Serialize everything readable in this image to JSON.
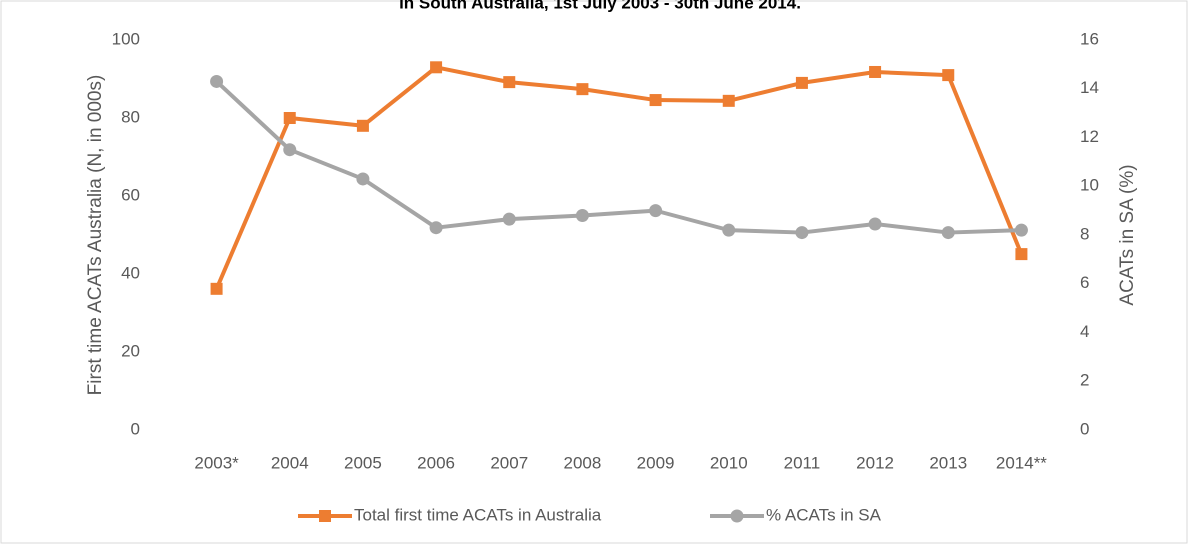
{
  "chart_data": {
    "type": "line",
    "title": "in South Australia, 1st July 2003 - 30th June 2014.",
    "ylabel": "First time ACATs Australia (N, in 000s)",
    "y2label": "ACATs in SA (%)",
    "categories": [
      "2003*",
      "2004",
      "2005",
      "2006",
      "2007",
      "2008",
      "2009",
      "2010",
      "2011",
      "2012",
      "2013",
      "2014**"
    ],
    "series": [
      {
        "name": "Total first time ACATs in Australia",
        "color": "#ed7d31",
        "marker": "square",
        "values": [
          36.2,
          80,
          78,
          93,
          89.2,
          87.4,
          84.6,
          84.4,
          89,
          91.8,
          91,
          45.1
        ]
      },
      {
        "name": "% ACATs in SA",
        "color": "#a5a5a5",
        "marker": "circle",
        "axis": "y2",
        "values": [
          14.3,
          11.5,
          10.3,
          8.3,
          8.65,
          8.8,
          9.0,
          8.2,
          8.1,
          8.45,
          8.1,
          8.2
        ]
      }
    ],
    "ylim": [
      0,
      100
    ],
    "yticks": [
      0,
      20,
      40,
      60,
      80,
      100
    ],
    "y2lim": [
      0,
      16
    ],
    "y2ticks": [
      0,
      2,
      4,
      6,
      8,
      10,
      12,
      14,
      16
    ],
    "legend": "bottom"
  }
}
